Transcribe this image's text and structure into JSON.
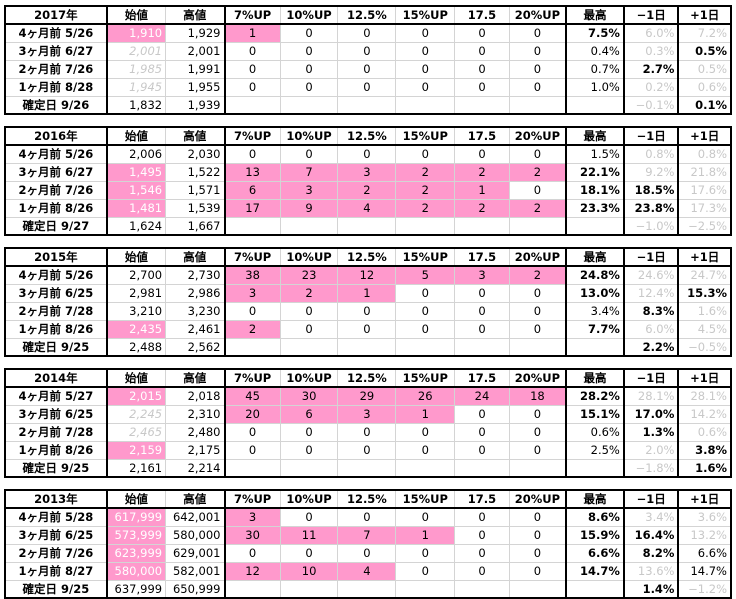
{
  "headers": [
    "始値",
    "高値",
    "7%UP",
    "10%UP",
    "12.5%",
    "15%UP",
    "17.5",
    "20%UP",
    "最高",
    "−1日",
    "+1日"
  ],
  "blocks": [
    {
      "year": "2017年",
      "rows": [
        {
          "label": "4ヶ月前 5/26",
          "open": "1,910",
          "open_style": "pink",
          "high": "1,929",
          "c": [
            "1",
            "0",
            "0",
            "0",
            "0",
            "0"
          ],
          "pink": [
            0
          ],
          "max": "7.5%",
          "max_bold": true,
          "m1": "6.0%",
          "m1_style": "gray",
          "p1": "7.2%",
          "p1_style": "gray"
        },
        {
          "label": "3ヶ月前 6/27",
          "open": "2,001",
          "open_style": "gray-it",
          "high": "2,001",
          "c": [
            "0",
            "0",
            "0",
            "0",
            "0",
            "0"
          ],
          "pink": [],
          "max": "0.4%",
          "max_bold": false,
          "m1": "0.3%",
          "m1_style": "gray",
          "p1": "0.5%",
          "p1_style": "bold"
        },
        {
          "label": "2ヶ月前 7/26",
          "open": "1,985",
          "open_style": "gray-it",
          "high": "1,991",
          "c": [
            "0",
            "0",
            "0",
            "0",
            "0",
            "0"
          ],
          "pink": [],
          "max": "0.7%",
          "max_bold": false,
          "m1": "2.7%",
          "m1_style": "bold",
          "p1": "0.5%",
          "p1_style": "gray"
        },
        {
          "label": "1ヶ月前 8/28",
          "open": "1,945",
          "open_style": "gray-it",
          "high": "1,955",
          "c": [
            "0",
            "0",
            "0",
            "0",
            "0",
            "0"
          ],
          "pink": [],
          "max": "1.0%",
          "max_bold": false,
          "m1": "0.2%",
          "m1_style": "gray",
          "p1": "0.6%",
          "p1_style": "gray"
        },
        {
          "label": "確定日 9/26",
          "open": "1,832",
          "open_style": "",
          "high": "1,939",
          "c": [
            "",
            "",
            "",
            "",
            "",
            ""
          ],
          "pink": [],
          "max": "",
          "max_bold": false,
          "m1": "−0.1%",
          "m1_style": "gray",
          "p1": "0.1%",
          "p1_style": "bold"
        }
      ]
    },
    {
      "year": "2016年",
      "rows": [
        {
          "label": "4ヶ月前 5/26",
          "open": "2,006",
          "open_style": "",
          "high": "2,030",
          "c": [
            "0",
            "0",
            "0",
            "0",
            "0",
            "0"
          ],
          "pink": [],
          "max": "1.5%",
          "max_bold": false,
          "m1": "0.8%",
          "m1_style": "gray",
          "p1": "0.8%",
          "p1_style": "gray"
        },
        {
          "label": "3ヶ月前 6/27",
          "open": "1,495",
          "open_style": "pink",
          "high": "1,522",
          "c": [
            "13",
            "7",
            "3",
            "2",
            "2",
            "2"
          ],
          "pink": [
            0,
            1,
            2,
            3,
            4,
            5
          ],
          "max": "22.1%",
          "max_bold": true,
          "m1": "9.2%",
          "m1_style": "gray",
          "p1": "21.8%",
          "p1_style": "gray"
        },
        {
          "label": "2ヶ月前 7/26",
          "open": "1,546",
          "open_style": "pink",
          "high": "1,571",
          "c": [
            "6",
            "3",
            "2",
            "2",
            "1",
            "0"
          ],
          "pink": [
            0,
            1,
            2,
            3,
            4
          ],
          "max": "18.1%",
          "max_bold": true,
          "m1": "18.5%",
          "m1_style": "bold",
          "p1": "17.6%",
          "p1_style": "gray"
        },
        {
          "label": "1ヶ月前 8/26",
          "open": "1,481",
          "open_style": "pink",
          "high": "1,539",
          "c": [
            "17",
            "9",
            "4",
            "2",
            "2",
            "2"
          ],
          "pink": [
            0,
            1,
            2,
            3,
            4,
            5
          ],
          "max": "23.3%",
          "max_bold": true,
          "m1": "23.8%",
          "m1_style": "bold",
          "p1": "17.3%",
          "p1_style": "gray"
        },
        {
          "label": "確定日 9/27",
          "open": "1,624",
          "open_style": "",
          "high": "1,667",
          "c": [
            "",
            "",
            "",
            "",
            "",
            ""
          ],
          "pink": [],
          "max": "",
          "max_bold": false,
          "m1": "−1.0%",
          "m1_style": "gray",
          "p1": "−2.5%",
          "p1_style": "gray"
        }
      ]
    },
    {
      "year": "2015年",
      "rows": [
        {
          "label": "4ヶ月前 5/26",
          "open": "2,700",
          "open_style": "",
          "high": "2,730",
          "c": [
            "38",
            "23",
            "12",
            "5",
            "3",
            "2"
          ],
          "pink": [
            0,
            1,
            2,
            3,
            4,
            5
          ],
          "max": "24.8%",
          "max_bold": true,
          "m1": "24.6%",
          "m1_style": "gray",
          "p1": "24.7%",
          "p1_style": "gray"
        },
        {
          "label": "3ヶ月前 6/25",
          "open": "2,981",
          "open_style": "",
          "high": "2,986",
          "c": [
            "3",
            "2",
            "1",
            "0",
            "0",
            "0"
          ],
          "pink": [
            0,
            1,
            2
          ],
          "max": "13.0%",
          "max_bold": true,
          "m1": "12.4%",
          "m1_style": "gray",
          "p1": "15.3%",
          "p1_style": "bold"
        },
        {
          "label": "2ヶ月前 7/28",
          "open": "3,210",
          "open_style": "",
          "high": "3,230",
          "c": [
            "0",
            "0",
            "0",
            "0",
            "0",
            "0"
          ],
          "pink": [],
          "max": "3.4%",
          "max_bold": false,
          "m1": "8.3%",
          "m1_style": "bold",
          "p1": "1.6%",
          "p1_style": "gray"
        },
        {
          "label": "1ヶ月前 8/26",
          "open": "2,435",
          "open_style": "pink",
          "high": "2,461",
          "c": [
            "2",
            "0",
            "0",
            "0",
            "0",
            "0"
          ],
          "pink": [
            0
          ],
          "max": "7.7%",
          "max_bold": true,
          "m1": "6.0%",
          "m1_style": "gray",
          "p1": "4.5%",
          "p1_style": "gray"
        },
        {
          "label": "確定日 9/25",
          "open": "2,488",
          "open_style": "",
          "high": "2,562",
          "c": [
            "",
            "",
            "",
            "",
            "",
            ""
          ],
          "pink": [],
          "max": "",
          "max_bold": false,
          "m1": "2.2%",
          "m1_style": "bold",
          "p1": "−0.5%",
          "p1_style": "gray"
        }
      ]
    },
    {
      "year": "2014年",
      "rows": [
        {
          "label": "4ヶ月前 5/27",
          "open": "2,015",
          "open_style": "pink",
          "high": "2,018",
          "c": [
            "45",
            "30",
            "29",
            "26",
            "24",
            "18"
          ],
          "pink": [
            0,
            1,
            2,
            3,
            4,
            5
          ],
          "max": "28.2%",
          "max_bold": true,
          "m1": "28.1%",
          "m1_style": "gray",
          "p1": "28.1%",
          "p1_style": "gray"
        },
        {
          "label": "3ヶ月前 6/25",
          "open": "2,245",
          "open_style": "gray-it",
          "high": "2,310",
          "c": [
            "20",
            "6",
            "3",
            "1",
            "0",
            "0"
          ],
          "pink": [
            0,
            1,
            2,
            3
          ],
          "max": "15.1%",
          "max_bold": true,
          "m1": "17.0%",
          "m1_style": "bold",
          "p1": "14.2%",
          "p1_style": "gray"
        },
        {
          "label": "2ヶ月前 7/28",
          "open": "2,465",
          "open_style": "gray-it",
          "high": "2,480",
          "c": [
            "0",
            "0",
            "0",
            "0",
            "0",
            "0"
          ],
          "pink": [],
          "max": "0.6%",
          "max_bold": false,
          "m1": "1.3%",
          "m1_style": "bold",
          "p1": "0.6%",
          "p1_style": "gray"
        },
        {
          "label": "1ヶ月前 8/26",
          "open": "2,159",
          "open_style": "pink",
          "high": "2,175",
          "c": [
            "0",
            "0",
            "0",
            "0",
            "0",
            "0"
          ],
          "pink": [],
          "max": "2.5%",
          "max_bold": false,
          "m1": "2.0%",
          "m1_style": "gray",
          "p1": "3.8%",
          "p1_style": "bold"
        },
        {
          "label": "確定日 9/25",
          "open": "2,161",
          "open_style": "",
          "high": "2,214",
          "c": [
            "",
            "",
            "",
            "",
            "",
            ""
          ],
          "pink": [],
          "max": "",
          "max_bold": false,
          "m1": "−1.8%",
          "m1_style": "gray",
          "p1": "1.6%",
          "p1_style": "bold"
        }
      ]
    },
    {
      "year": "2013年",
      "rows": [
        {
          "label": "4ヶ月前 5/28",
          "open": "617,999",
          "open_style": "pink",
          "high": "642,001",
          "c": [
            "3",
            "0",
            "0",
            "0",
            "0",
            "0"
          ],
          "pink": [
            0
          ],
          "max": "8.6%",
          "max_bold": true,
          "m1": "3.4%",
          "m1_style": "gray",
          "p1": "3.6%",
          "p1_style": "gray"
        },
        {
          "label": "3ヶ月前 6/25",
          "open": "573,999",
          "open_style": "pink",
          "high": "580,000",
          "c": [
            "30",
            "11",
            "7",
            "1",
            "0",
            "0"
          ],
          "pink": [
            0,
            1,
            2,
            3
          ],
          "max": "15.9%",
          "max_bold": true,
          "m1": "16.4%",
          "m1_style": "bold",
          "p1": "13.2%",
          "p1_style": "gray"
        },
        {
          "label": "2ヶ月前 7/26",
          "open": "623,999",
          "open_style": "pink",
          "high": "629,001",
          "c": [
            "0",
            "0",
            "0",
            "0",
            "0",
            "0"
          ],
          "pink": [],
          "max": "6.6%",
          "max_bold": true,
          "m1": "8.2%",
          "m1_style": "bold",
          "p1": "6.6%",
          "p1_style": ""
        },
        {
          "label": "1ヶ月前 8/27",
          "open": "580,000",
          "open_style": "pink",
          "high": "582,001",
          "c": [
            "12",
            "10",
            "4",
            "0",
            "0",
            "0"
          ],
          "pink": [
            0,
            1,
            2
          ],
          "max": "14.7%",
          "max_bold": true,
          "m1": "13.6%",
          "m1_style": "gray",
          "p1": "14.7%",
          "p1_style": ""
        },
        {
          "label": "確定日 9/25",
          "open": "637,999",
          "open_style": "",
          "high": "650,999",
          "c": [
            "",
            "",
            "",
            "",
            "",
            ""
          ],
          "pink": [],
          "max": "",
          "max_bold": false,
          "m1": "1.4%",
          "m1_style": "bold",
          "p1": "−1.2%",
          "p1_style": "gray"
        }
      ]
    }
  ]
}
